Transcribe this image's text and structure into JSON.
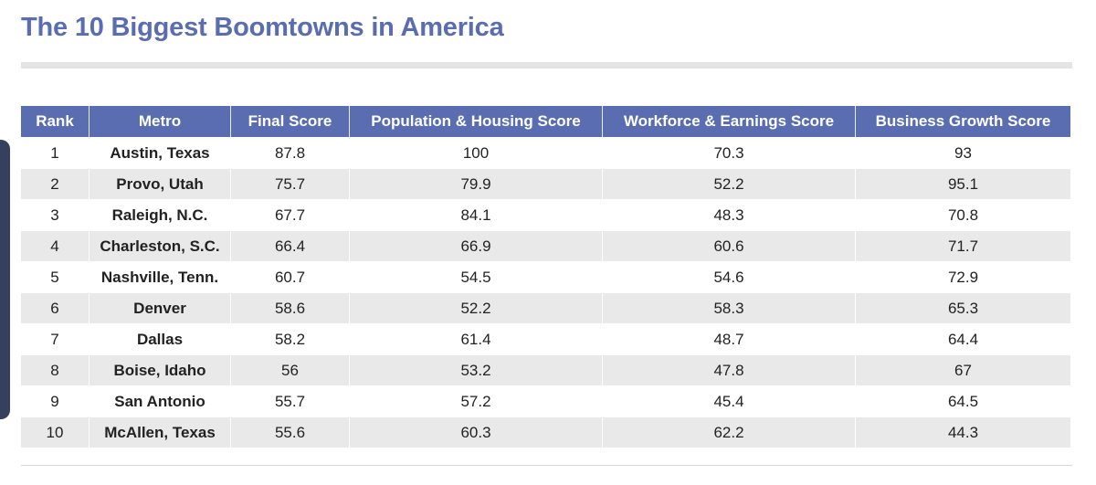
{
  "title": "The 10 Biggest Boomtowns in America",
  "colors": {
    "title": "#5a6db0",
    "header_bg": "#5a6db0",
    "header_text": "#ffffff",
    "stripe": "#e9e9e9",
    "side_tab": "#34405e"
  },
  "table": {
    "columns": [
      "Rank",
      "Metro",
      "Final Score",
      "Population & Housing Score",
      "Workforce & Earnings Score",
      "Business Growth Score"
    ],
    "rows": [
      {
        "rank": "1",
        "metro": "Austin, Texas",
        "final": "87.8",
        "population": "100",
        "workforce": "70.3",
        "business": "93"
      },
      {
        "rank": "2",
        "metro": "Provo, Utah",
        "final": "75.7",
        "population": "79.9",
        "workforce": "52.2",
        "business": "95.1"
      },
      {
        "rank": "3",
        "metro": "Raleigh, N.C.",
        "final": "67.7",
        "population": "84.1",
        "workforce": "48.3",
        "business": "70.8"
      },
      {
        "rank": "4",
        "metro": "Charleston, S.C.",
        "final": "66.4",
        "population": "66.9",
        "workforce": "60.6",
        "business": "71.7"
      },
      {
        "rank": "5",
        "metro": "Nashville, Tenn.",
        "final": "60.7",
        "population": "54.5",
        "workforce": "54.6",
        "business": "72.9"
      },
      {
        "rank": "6",
        "metro": "Denver",
        "final": "58.6",
        "population": "52.2",
        "workforce": "58.3",
        "business": "65.3"
      },
      {
        "rank": "7",
        "metro": "Dallas",
        "final": "58.2",
        "population": "61.4",
        "workforce": "48.7",
        "business": "64.4"
      },
      {
        "rank": "8",
        "metro": "Boise, Idaho",
        "final": "56",
        "population": "53.2",
        "workforce": "47.8",
        "business": "67"
      },
      {
        "rank": "9",
        "metro": "San Antonio",
        "final": "55.7",
        "population": "57.2",
        "workforce": "45.4",
        "business": "64.5"
      },
      {
        "rank": "10",
        "metro": "McAllen, Texas",
        "final": "55.6",
        "population": "60.3",
        "workforce": "62.2",
        "business": "44.3"
      }
    ]
  }
}
